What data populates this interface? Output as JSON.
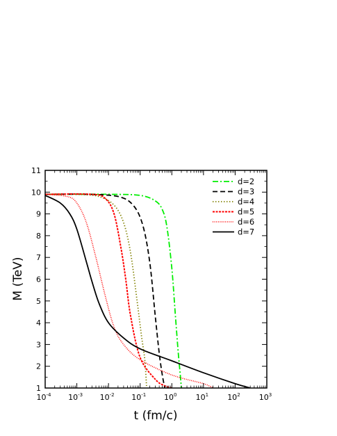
{
  "chart_data": {
    "type": "line",
    "xlabel": "t (fm/c)",
    "ylabel": "M (TeV)",
    "x_scale": "log",
    "xlim": [
      0.0001,
      1000
    ],
    "ylim": [
      1,
      11
    ],
    "x_ticks": [
      {
        "base": "10",
        "exp": "-4",
        "value": 0.0001
      },
      {
        "base": "10",
        "exp": "-3",
        "value": 0.001
      },
      {
        "base": "10",
        "exp": "-2",
        "value": 0.01
      },
      {
        "base": "10",
        "exp": "-1",
        "value": 0.1
      },
      {
        "base": "10",
        "exp": "0",
        "value": 1
      },
      {
        "base": "10",
        "exp": "1",
        "value": 10
      },
      {
        "base": "10",
        "exp": "2",
        "value": 100
      },
      {
        "base": "10",
        "exp": "3",
        "value": 1000
      }
    ],
    "y_ticks": [
      "1",
      "2",
      "3",
      "4",
      "5",
      "6",
      "7",
      "8",
      "9",
      "10",
      "11"
    ],
    "grid": false,
    "legend_position": "top-right",
    "series": [
      {
        "name": "d=2",
        "color": "#00ee00",
        "dash": "dashdot",
        "x": [
          0.0001,
          0.01,
          0.1,
          0.3,
          0.5,
          0.7,
          1.0,
          1.3,
          1.6,
          1.85,
          2.0
        ],
        "y": [
          9.9,
          9.9,
          9.85,
          9.6,
          9.2,
          8.4,
          6.5,
          4.3,
          2.6,
          1.6,
          1.0
        ]
      },
      {
        "name": "d=3",
        "color": "#000000",
        "dash": "dashed",
        "x": [
          0.0001,
          0.002,
          0.02,
          0.06,
          0.12,
          0.2,
          0.3,
          0.4,
          0.5,
          0.6
        ],
        "y": [
          9.9,
          9.9,
          9.8,
          9.4,
          8.5,
          6.8,
          4.3,
          2.6,
          1.6,
          1.0
        ]
      },
      {
        "name": "d=4",
        "color": "#808000",
        "dash": "dotted",
        "x": [
          0.0001,
          0.001,
          0.005,
          0.015,
          0.03,
          0.05,
          0.08,
          0.11,
          0.14,
          0.16
        ],
        "y": [
          9.9,
          9.9,
          9.8,
          9.4,
          8.6,
          7.2,
          5.0,
          3.4,
          2.3,
          1.0
        ]
      },
      {
        "name": "d=5",
        "color": "#ff0000",
        "dash": "densedash",
        "x": [
          0.0001,
          0.003,
          0.008,
          0.015,
          0.025,
          0.035,
          0.05,
          0.1,
          0.3,
          0.6,
          1.0
        ],
        "y": [
          9.9,
          9.9,
          9.7,
          9.0,
          7.4,
          6.0,
          4.3,
          2.4,
          1.4,
          1.1,
          1.0
        ]
      },
      {
        "name": "d=6",
        "color": "#ff0000",
        "dash": "finedot",
        "x": [
          0.0001,
          0.0005,
          0.001,
          0.002,
          0.004,
          0.008,
          0.015,
          0.03,
          0.1,
          1.0,
          10.0,
          20.0
        ],
        "y": [
          9.9,
          9.8,
          9.5,
          8.6,
          7.0,
          5.2,
          3.8,
          3.0,
          2.3,
          1.6,
          1.2,
          1.0
        ]
      },
      {
        "name": "d=7",
        "color": "#000000",
        "dash": "solid",
        "x": [
          0.0001,
          0.0003,
          0.0006,
          0.001,
          0.002,
          0.003,
          0.005,
          0.01,
          0.03,
          0.1,
          1.0,
          10.0,
          100.0,
          300.0
        ],
        "y": [
          9.85,
          9.5,
          9.0,
          8.3,
          6.8,
          5.9,
          4.9,
          4.0,
          3.3,
          2.8,
          2.25,
          1.7,
          1.2,
          1.0
        ]
      }
    ]
  }
}
